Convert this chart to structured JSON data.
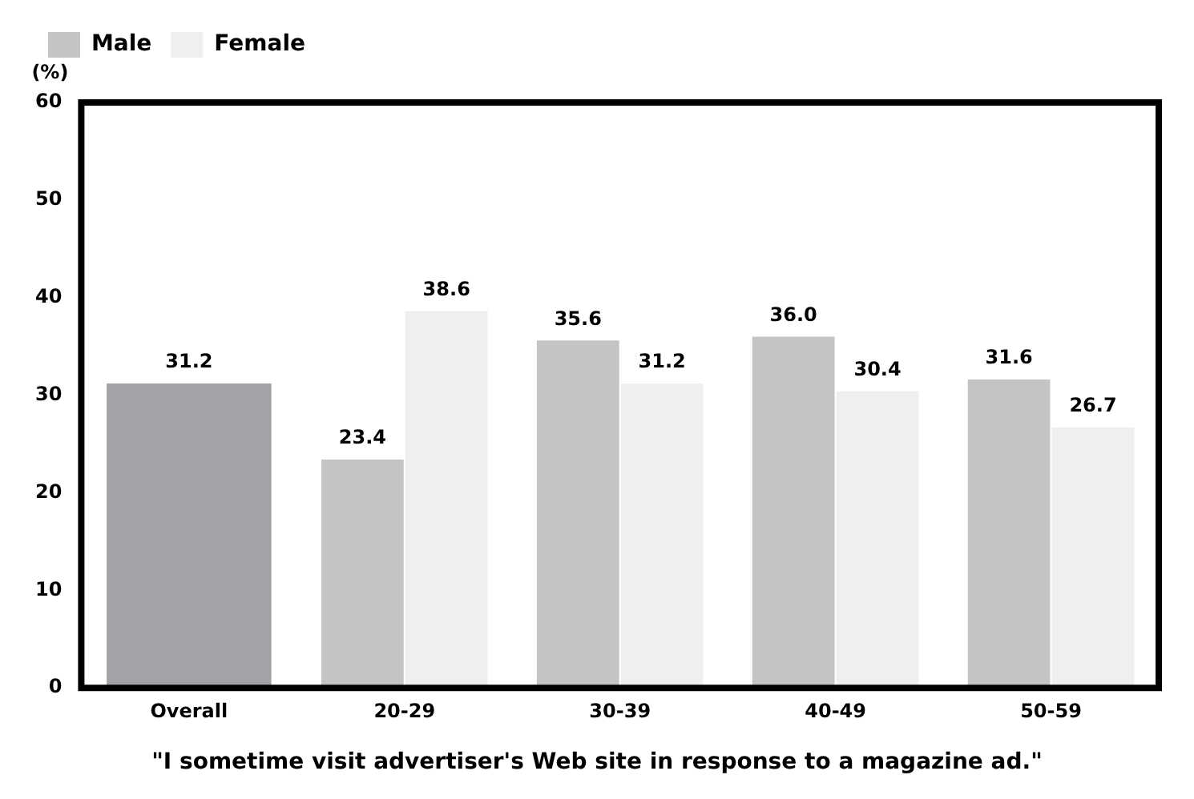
{
  "chart_data": {
    "type": "bar",
    "ylabel": "(%)",
    "categories": [
      "Overall",
      "20-29",
      "30-39",
      "40-49",
      "50-59"
    ],
    "series": [
      {
        "color": "#a3a3a7",
        "values": [
          31.2,
          null,
          null,
          null,
          null
        ],
        "value_labels": [
          "31.2",
          null,
          null,
          null,
          null
        ]
      },
      {
        "name": "Male",
        "color": "#c4c4c4",
        "values": [
          null,
          23.4,
          35.6,
          36.0,
          31.6
        ],
        "value_labels": [
          null,
          "23.4",
          "35.6",
          "36.0",
          "31.6"
        ]
      },
      {
        "name": "Female",
        "color": "#efefef",
        "values": [
          null,
          38.6,
          31.2,
          30.4,
          26.7
        ],
        "value_labels": [
          null,
          "38.6",
          "31.2",
          "30.4",
          "26.7"
        ]
      }
    ],
    "ylim": [
      0,
      60
    ],
    "yticks": [
      0,
      10,
      20,
      30,
      40,
      50,
      60
    ],
    "grid": false,
    "legend": "top left",
    "annotations": [
      "\"I sometime visit advertiser's Web site in response to a magazine ad.\""
    ]
  }
}
